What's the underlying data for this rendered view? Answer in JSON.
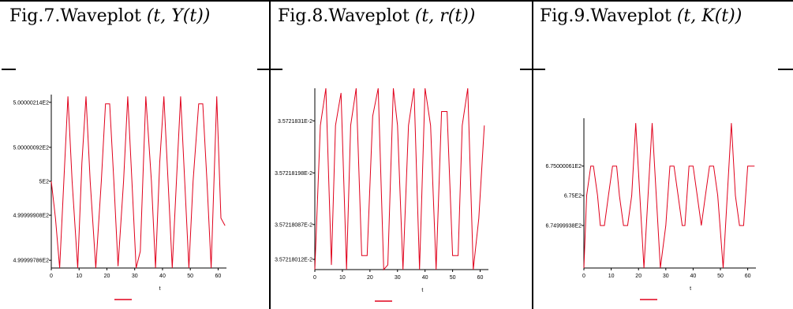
{
  "figures": [
    {
      "caption_prefix": "Fig.7.Waveplot ",
      "caption_math": "(t, Y(t))"
    },
    {
      "caption_prefix": "Fig.8.Waveplot ",
      "caption_math": "(t, r(t))"
    },
    {
      "caption_prefix": "Fig.9.Waveplot ",
      "caption_math": "(t, K(t))"
    }
  ],
  "colors": {
    "series": "#e0001b",
    "axis": "#000000"
  },
  "chart_data": [
    {
      "type": "line",
      "xlabel": "t",
      "xlim": [
        0,
        63
      ],
      "ylim": [
        4999997650,
        5000002350
      ],
      "x_ticks": [
        0,
        10,
        20,
        30,
        40,
        50,
        60
      ],
      "y_ticks": [
        {
          "value": 4999997860,
          "label": "4.99999786E2"
        },
        {
          "value": 4999999080,
          "label": "4.99999908E2"
        },
        {
          "value": 5000000000,
          "label": "5E2"
        },
        {
          "value": 5000000920,
          "label": "5.00000092E2"
        },
        {
          "value": 5000002140,
          "label": "5.00000214E2"
        }
      ],
      "series": [
        {
          "x": [
            0,
            1.5,
            3,
            4.5,
            6,
            7.5,
            9.5,
            11,
            12.5,
            14,
            16,
            18,
            19.5,
            21,
            22.5,
            24,
            26,
            27.5,
            29,
            30.5,
            32,
            34,
            36,
            37.5,
            39,
            40.5,
            42,
            43.5,
            45,
            46.5,
            48,
            49.5,
            51,
            53,
            54.5,
            56,
            57.5,
            59.5,
            61,
            62.5
          ],
          "y": [
            5000000000,
            4999999000,
            4999997650,
            5000000000,
            5000002300,
            5000000000,
            4999997650,
            5000000500,
            5000002300,
            5000000000,
            4999997650,
            5000000000,
            5000002100,
            5000002100,
            5000000000,
            4999997700,
            5000000000,
            5000002300,
            5000000000,
            4999997650,
            4999998100,
            5000002300,
            5000000000,
            4999997650,
            5000000500,
            5000002300,
            5000000000,
            4999997650,
            5000000000,
            5000002300,
            5000000000,
            4999997650,
            5000000000,
            5000002100,
            5000002100,
            5000000000,
            4999997650,
            5000002300,
            4999999000,
            4999998800
          ]
        }
      ]
    },
    {
      "type": "line",
      "xlabel": "t",
      "xlim": [
        0,
        63
      ],
      "ylim": [
        357217990,
        357218380
      ],
      "x_ticks": [
        0,
        10,
        20,
        30,
        40,
        50,
        60
      ],
      "y_ticks": [
        {
          "value": 357218012,
          "label": "3.57218012E-2"
        },
        {
          "value": 357218087,
          "label": "3.57218087E-2"
        },
        {
          "value": 357218198,
          "label": "3.57218198E-2"
        },
        {
          "value": 357218310,
          "label": "3.5721831E-2"
        }
      ],
      "series": [
        {
          "x": [
            0,
            2,
            4,
            6,
            7.5,
            9.5,
            11.5,
            13,
            15,
            17,
            19,
            21,
            23,
            25,
            26.5,
            28.5,
            30,
            32,
            34,
            36,
            38,
            40,
            42,
            44,
            46,
            48,
            50,
            52,
            53.5,
            55.5,
            57.5,
            59.5,
            61.5
          ],
          "y": [
            357217990,
            357218300,
            357218380,
            357218000,
            357218300,
            357218370,
            357217990,
            357218300,
            357218380,
            357218020,
            357218020,
            357218320,
            357218380,
            357217990,
            357218000,
            357218380,
            357218300,
            357217990,
            357218300,
            357218380,
            357217990,
            357218380,
            357218300,
            357217990,
            357218330,
            357218330,
            357218020,
            357218020,
            357218300,
            357218380,
            357217990,
            357218100,
            357218300
          ]
        }
      ]
    },
    {
      "type": "line",
      "xlabel": "t",
      "xlim": [
        0,
        63
      ],
      "ylim": [
        674999850,
        675000160
      ],
      "x_ticks": [
        0,
        10,
        20,
        30,
        40,
        50,
        60
      ],
      "y_ticks": [
        {
          "value": 674999938,
          "label": "6.74999938E2"
        },
        {
          "value": 675000000,
          "label": "6.75E2"
        },
        {
          "value": 675000061,
          "label": "6.75000061E2"
        }
      ],
      "series": [
        {
          "x": [
            0,
            1,
            2.5,
            3.5,
            5,
            6,
            7.5,
            9,
            10.5,
            12,
            13,
            14.5,
            16,
            17.5,
            19,
            20.5,
            22,
            23.5,
            25,
            26.5,
            28,
            30,
            31.5,
            33,
            34.5,
            36,
            37,
            38.5,
            40,
            41.5,
            43,
            44.5,
            46,
            47.5,
            49,
            51,
            52.5,
            54,
            55.5,
            57,
            58.5,
            60,
            61.5,
            62.5
          ],
          "y": [
            674999850,
            675000000,
            675000061,
            675000061,
            675000000,
            674999938,
            674999938,
            675000000,
            675000061,
            675000061,
            675000000,
            674999938,
            674999938,
            675000000,
            675000150,
            675000000,
            674999850,
            675000000,
            675000150,
            675000000,
            674999850,
            674999938,
            675000061,
            675000061,
            675000000,
            674999938,
            674999938,
            675000061,
            675000061,
            675000000,
            674999938,
            675000000,
            675000061,
            675000061,
            675000000,
            674999850,
            675000000,
            675000150,
            675000000,
            674999938,
            674999938,
            675000061,
            675000061,
            675000061
          ]
        }
      ]
    }
  ]
}
